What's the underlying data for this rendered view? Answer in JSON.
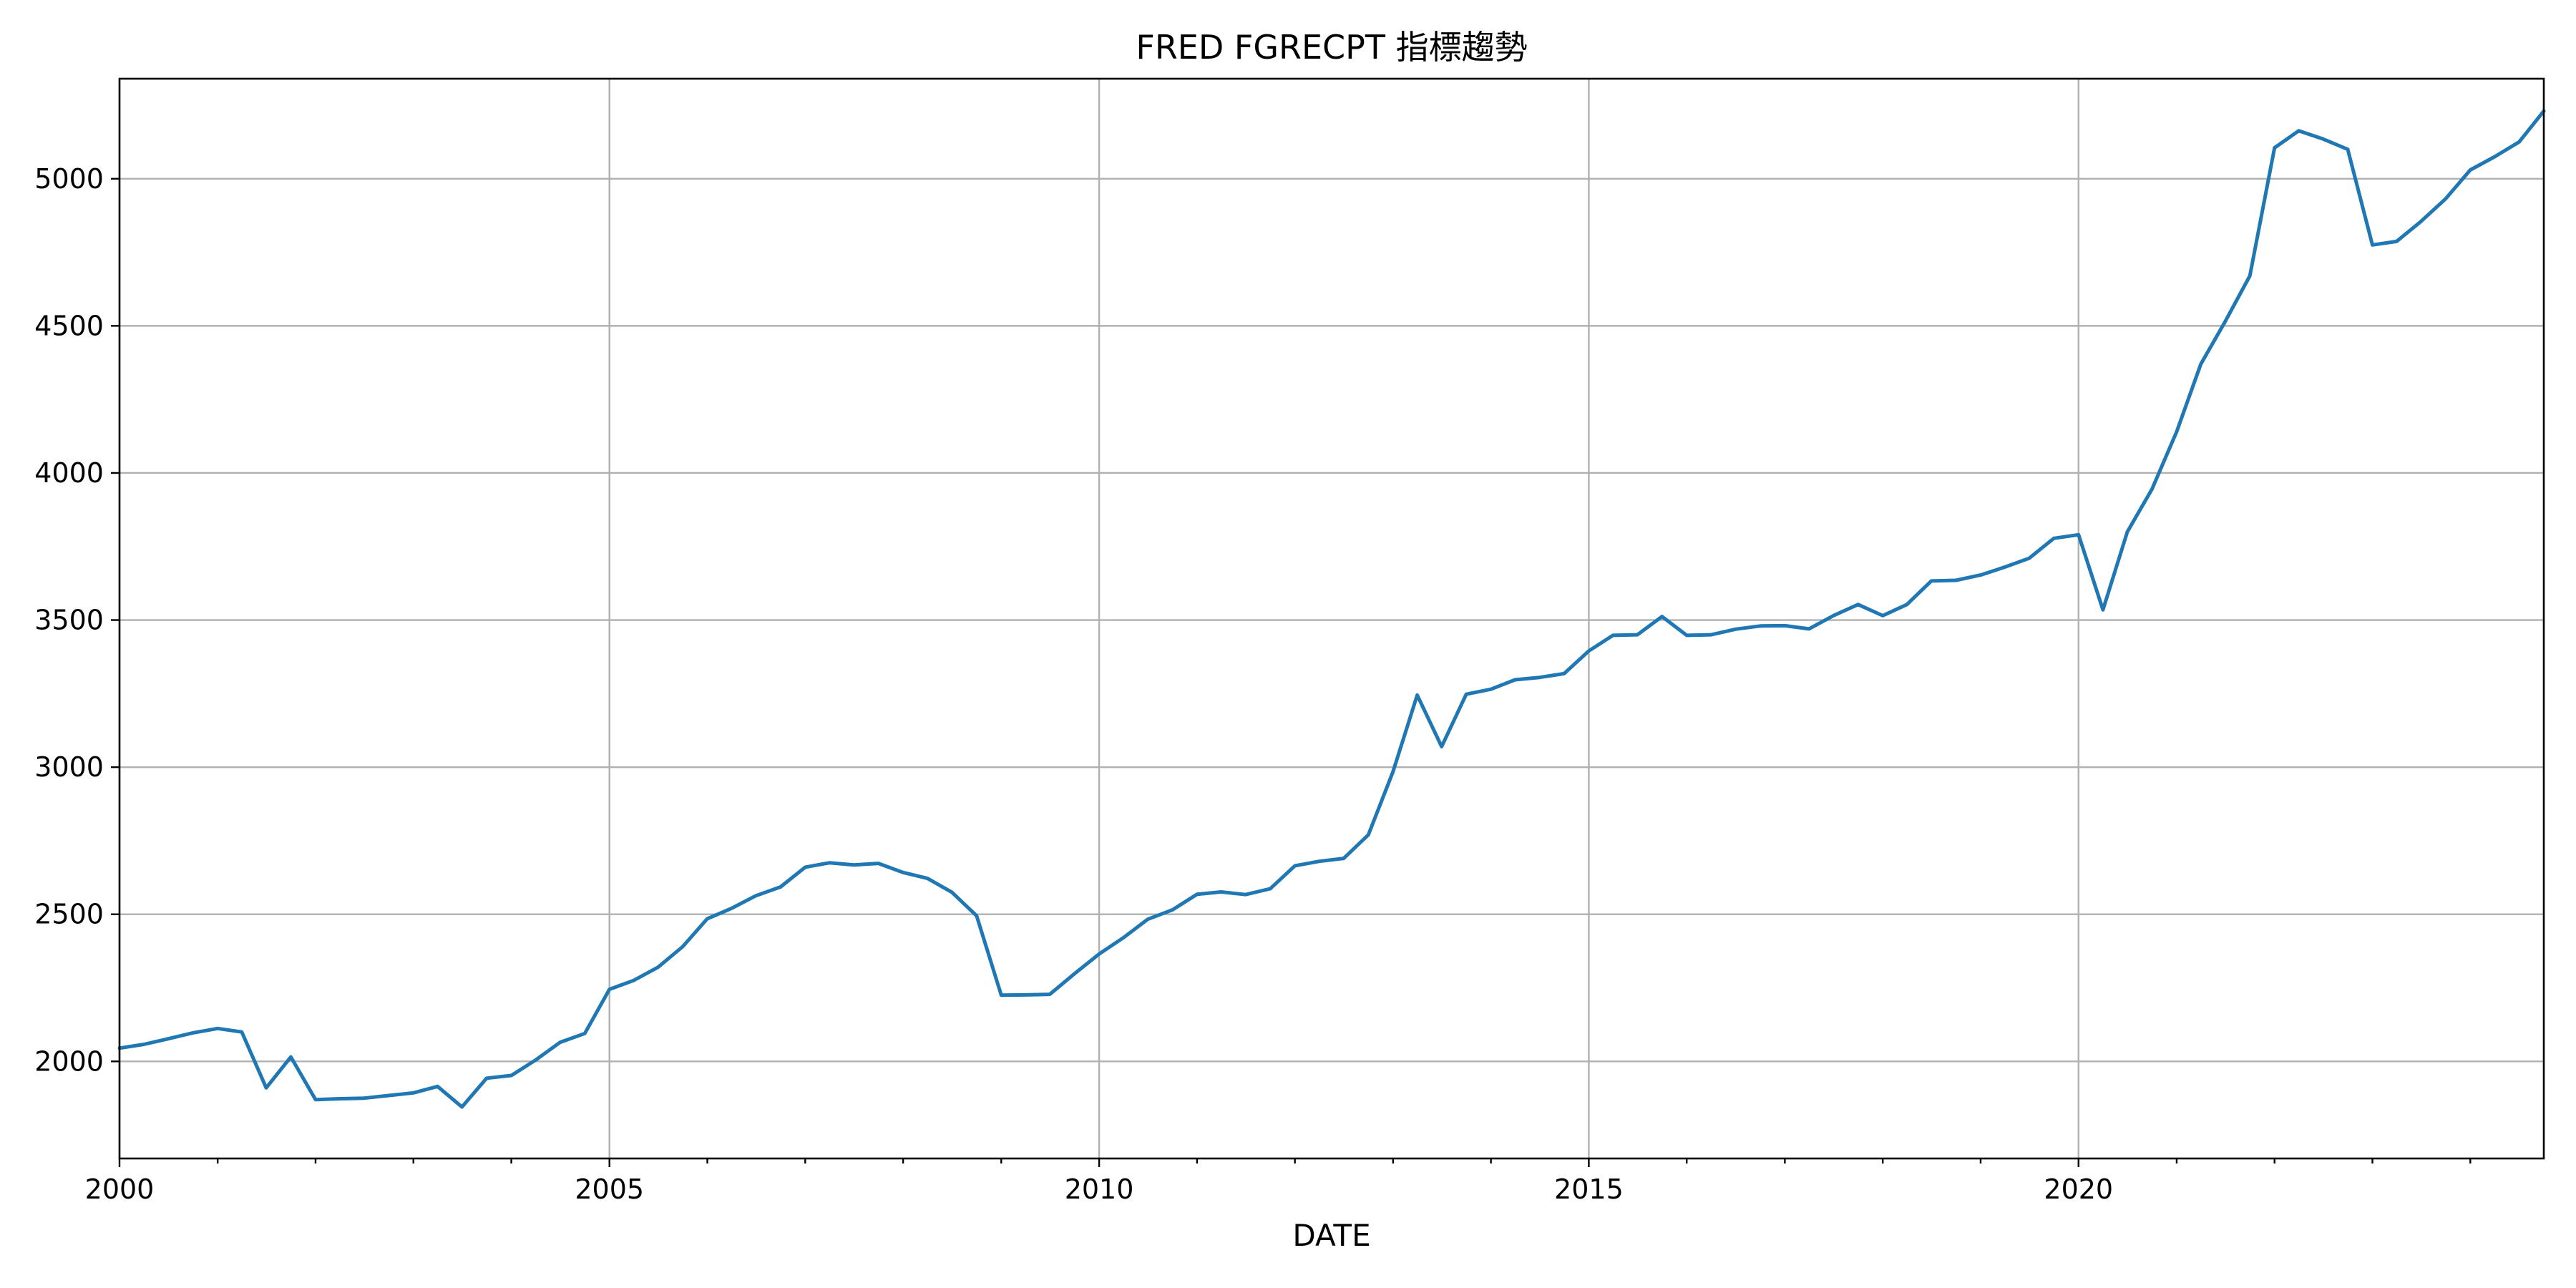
{
  "chart_data": {
    "type": "line",
    "title": "FRED FGRECPT 指標趨勢",
    "xlabel": "DATE",
    "ylabel": "",
    "xlim": [
      "2000-01-01",
      "2024-10-01"
    ],
    "ylim": [
      1670,
      5340
    ],
    "x_major_ticks": [
      "2000",
      "2005",
      "2010",
      "2015",
      "2020"
    ],
    "y_ticks": [
      2000,
      2500,
      3000,
      3500,
      4000,
      4500,
      5000
    ],
    "grid": true,
    "legend": "none",
    "colors": {
      "series": "#1f77b4"
    },
    "series": [
      {
        "x": [
          "2000-01-01",
          "2000-04-01",
          "2000-07-01",
          "2000-10-01",
          "2001-01-01",
          "2001-04-01",
          "2001-07-01",
          "2001-10-01",
          "2002-01-01",
          "2002-04-01",
          "2002-07-01",
          "2002-10-01",
          "2003-01-01",
          "2003-04-01",
          "2003-07-01",
          "2003-10-01",
          "2004-01-01",
          "2004-04-01",
          "2004-07-01",
          "2004-10-01",
          "2005-01-01",
          "2005-04-01",
          "2005-07-01",
          "2005-10-01",
          "2006-01-01",
          "2006-04-01",
          "2006-07-01",
          "2006-10-01",
          "2007-01-01",
          "2007-04-01",
          "2007-07-01",
          "2007-10-01",
          "2008-01-01",
          "2008-04-01",
          "2008-07-01",
          "2008-10-01",
          "2009-01-01",
          "2009-04-01",
          "2009-07-01",
          "2009-10-01",
          "2010-01-01",
          "2010-04-01",
          "2010-07-01",
          "2010-10-01",
          "2011-01-01",
          "2011-04-01",
          "2011-07-01",
          "2011-10-01",
          "2012-01-01",
          "2012-04-01",
          "2012-07-01",
          "2012-10-01",
          "2013-01-01",
          "2013-04-01",
          "2013-07-01",
          "2013-10-01",
          "2014-01-01",
          "2014-04-01",
          "2014-07-01",
          "2014-10-01",
          "2015-01-01",
          "2015-04-01",
          "2015-07-01",
          "2015-10-01",
          "2016-01-01",
          "2016-04-01",
          "2016-07-01",
          "2016-10-01",
          "2017-01-01",
          "2017-04-01",
          "2017-07-01",
          "2017-10-01",
          "2018-01-01",
          "2018-04-01",
          "2018-07-01",
          "2018-10-01",
          "2019-01-01",
          "2019-04-01",
          "2019-07-01",
          "2019-10-01",
          "2020-01-01",
          "2020-04-01",
          "2020-07-01",
          "2020-10-01",
          "2021-01-01",
          "2021-04-01",
          "2021-07-01",
          "2021-10-01",
          "2022-01-01",
          "2022-04-01",
          "2022-07-01",
          "2022-10-01",
          "2023-01-01",
          "2023-04-01",
          "2023-07-01",
          "2023-10-01",
          "2024-01-01",
          "2024-04-01",
          "2024-07-01",
          "2024-10-01"
        ],
        "values": [
          2045,
          2058,
          2077,
          2097,
          2112,
          2100,
          1910,
          2015,
          1870,
          1873,
          1875,
          1884,
          1893,
          1915,
          1845,
          1943,
          1952,
          2005,
          2065,
          2095,
          2245,
          2275,
          2320,
          2390,
          2485,
          2520,
          2563,
          2593,
          2660,
          2675,
          2668,
          2673,
          2642,
          2622,
          2575,
          2495,
          2225,
          2226,
          2228,
          2298,
          2365,
          2420,
          2483,
          2515,
          2568,
          2576,
          2567,
          2587,
          2665,
          2680,
          2690,
          2770,
          2985,
          3245,
          3070,
          3248,
          3265,
          3297,
          3305,
          3318,
          3395,
          3448,
          3450,
          3512,
          3448,
          3450,
          3469,
          3480,
          3481,
          3470,
          3515,
          3553,
          3515,
          3553,
          3633,
          3635,
          3653,
          3680,
          3710,
          3778,
          3790,
          3535,
          3800,
          3945,
          4140,
          4370,
          4515,
          4670,
          5105,
          5163,
          5135,
          5100,
          4775,
          4787,
          4855,
          4932,
          5030,
          5075,
          5125,
          5230
        ]
      }
    ]
  }
}
